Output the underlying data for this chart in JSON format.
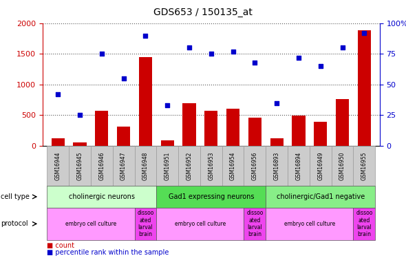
{
  "title": "GDS653 / 150135_at",
  "samples": [
    "GSM16944",
    "GSM16945",
    "GSM16946",
    "GSM16947",
    "GSM16948",
    "GSM16951",
    "GSM16952",
    "GSM16953",
    "GSM16954",
    "GSM16956",
    "GSM16893",
    "GSM16894",
    "GSM16949",
    "GSM16950",
    "GSM16955"
  ],
  "counts": [
    120,
    60,
    570,
    310,
    1450,
    90,
    700,
    570,
    600,
    460,
    120,
    490,
    390,
    760,
    1880
  ],
  "percentiles": [
    42,
    25,
    75,
    55,
    90,
    33,
    80,
    75,
    77,
    68,
    35,
    72,
    65,
    80,
    92
  ],
  "left_ylim": [
    0,
    2000
  ],
  "right_ylim": [
    0,
    100
  ],
  "left_yticks": [
    0,
    500,
    1000,
    1500,
    2000
  ],
  "right_yticks": [
    0,
    25,
    50,
    75,
    100
  ],
  "bar_color": "#cc0000",
  "dot_color": "#0000cc",
  "xtick_bg_color": "#cccccc",
  "cell_type_groups": [
    {
      "label": "cholinergic neurons",
      "start": 0,
      "end": 4,
      "color": "#ccffcc"
    },
    {
      "label": "Gad1 expressing neurons",
      "start": 5,
      "end": 9,
      "color": "#55dd55"
    },
    {
      "label": "cholinergic/Gad1 negative",
      "start": 10,
      "end": 14,
      "color": "#88ee88"
    }
  ],
  "protocol_groups": [
    {
      "label": "embryo cell culture",
      "start": 0,
      "end": 3,
      "color": "#ff99ff"
    },
    {
      "label": "dissoo\nated\nlarval\nbrain",
      "start": 4,
      "end": 4,
      "color": "#ee44ee"
    },
    {
      "label": "embryo cell culture",
      "start": 5,
      "end": 8,
      "color": "#ff99ff"
    },
    {
      "label": "dissoo\nated\nlarval\nbrain",
      "start": 9,
      "end": 9,
      "color": "#ee44ee"
    },
    {
      "label": "embryo cell culture",
      "start": 10,
      "end": 13,
      "color": "#ff99ff"
    },
    {
      "label": "dissoo\nated\nlarval\nbrain",
      "start": 14,
      "end": 14,
      "color": "#ee44ee"
    }
  ],
  "background_color": "#ffffff",
  "grid_color": "#555555",
  "legend_count_color": "#cc0000",
  "legend_dot_color": "#0000cc",
  "cell_type_row_label": "cell type",
  "protocol_row_label": "protocol",
  "legend_count_text": "count",
  "legend_pct_text": "percentile rank within the sample"
}
